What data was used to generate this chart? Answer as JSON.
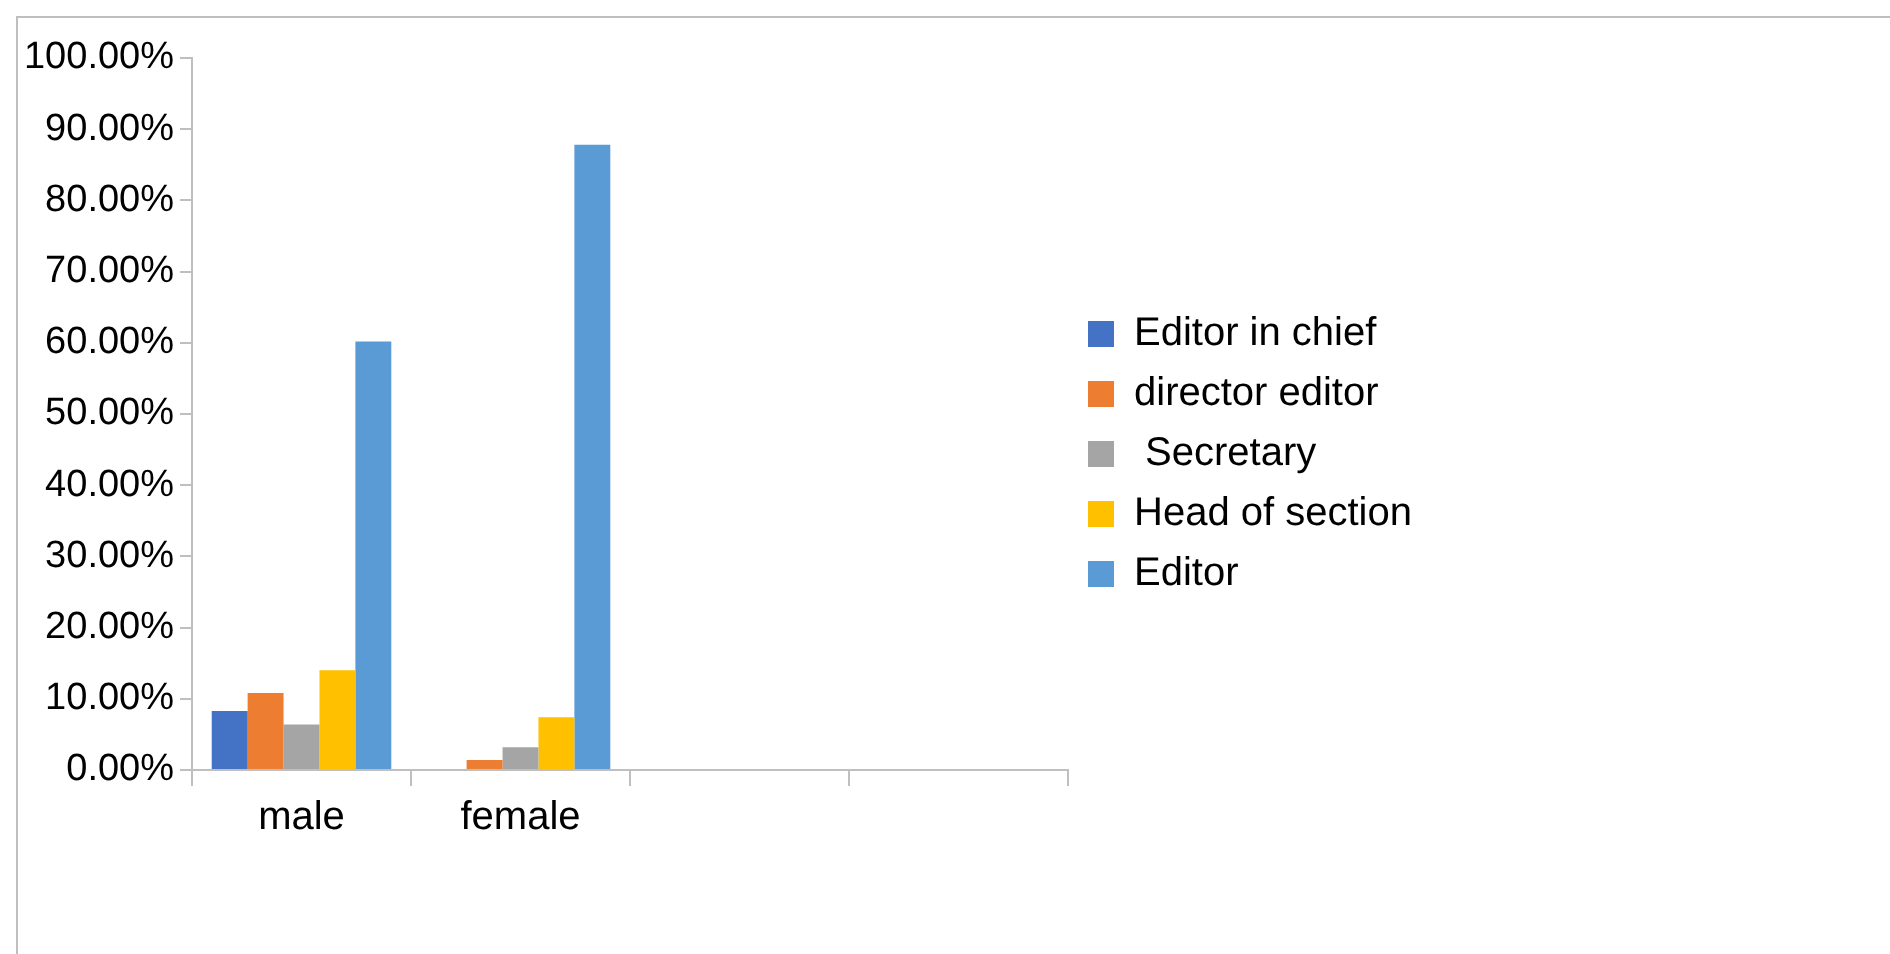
{
  "chart_data": {
    "type": "bar",
    "categories": [
      "male",
      "female",
      null,
      null
    ],
    "series": [
      {
        "name": "Editor in chief",
        "color": "#4472c4",
        "values": [
          8.3,
          0,
          null,
          null
        ]
      },
      {
        "name": "director editor",
        "color": "#ed7d31",
        "values": [
          10.8,
          1.4,
          null,
          null
        ]
      },
      {
        "name": " Secretary",
        "color": "#a5a5a5",
        "values": [
          6.4,
          3.2,
          null,
          null
        ]
      },
      {
        "name": "Head of section",
        "color": "#ffc000",
        "values": [
          14.0,
          7.4,
          null,
          null
        ]
      },
      {
        "name": "Editor",
        "color": "#5b9bd5",
        "values": [
          60.2,
          87.8,
          null,
          null
        ]
      }
    ],
    "ylim": [
      0,
      100
    ],
    "yticks": [
      {
        "value": 0,
        "label": "0.00%"
      },
      {
        "value": 10,
        "label": "10.00%"
      },
      {
        "value": 20,
        "label": "20.00%"
      },
      {
        "value": 30,
        "label": "30.00%"
      },
      {
        "value": 40,
        "label": "40.00%"
      },
      {
        "value": 50,
        "label": "50.00%"
      },
      {
        "value": 60,
        "label": "60.00%"
      },
      {
        "value": 70,
        "label": "70.00%"
      },
      {
        "value": 80,
        "label": "80.00%"
      },
      {
        "value": 90,
        "label": "90.00%"
      },
      {
        "value": 100,
        "label": "100.00%"
      }
    ],
    "grid": false,
    "legend": "right"
  }
}
